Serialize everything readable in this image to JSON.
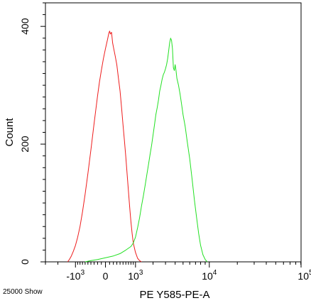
{
  "chart_data": {
    "type": "line",
    "xlabel": "PE Y585-PE-A",
    "ylabel": "Count",
    "footer_left": "25000 Show",
    "x_scale": "biexponential",
    "ylim": [
      0,
      440
    ],
    "y_ticks": [
      {
        "value": 0,
        "label": "0"
      },
      {
        "value": 200,
        "label": "200"
      },
      {
        "value": 400,
        "label": "400"
      }
    ],
    "x_ticks": [
      {
        "value": -1000,
        "base": "-10",
        "exp": "3"
      },
      {
        "value": 0,
        "base": "0",
        "exp": ""
      },
      {
        "value": 1000,
        "base": "10",
        "exp": "3"
      },
      {
        "value": 10000,
        "base": "10",
        "exp": "4"
      },
      {
        "value": 100000,
        "base": "10",
        "exp": "5"
      }
    ],
    "grid": false,
    "series": [
      {
        "color": "#ee1c1c",
        "points": [
          [
            -1400,
            0
          ],
          [
            -1300,
            4
          ],
          [
            -1200,
            10
          ],
          [
            -1100,
            18
          ],
          [
            -1000,
            28
          ],
          [
            -900,
            42
          ],
          [
            -800,
            60
          ],
          [
            -700,
            85
          ],
          [
            -600,
            115
          ],
          [
            -500,
            150
          ],
          [
            -400,
            190
          ],
          [
            -300,
            235
          ],
          [
            -250,
            258
          ],
          [
            -200,
            282
          ],
          [
            -150,
            305
          ],
          [
            -100,
            325
          ],
          [
            -50,
            345
          ],
          [
            0,
            362
          ],
          [
            50,
            378
          ],
          [
            80,
            388
          ],
          [
            100,
            392
          ],
          [
            120,
            387
          ],
          [
            150,
            390
          ],
          [
            180,
            372
          ],
          [
            200,
            365
          ],
          [
            250,
            350
          ],
          [
            300,
            335
          ],
          [
            350,
            312
          ],
          [
            400,
            290
          ],
          [
            450,
            262
          ],
          [
            500,
            232
          ],
          [
            550,
            205
          ],
          [
            600,
            178
          ],
          [
            650,
            148
          ],
          [
            700,
            120
          ],
          [
            750,
            92
          ],
          [
            800,
            68
          ],
          [
            850,
            48
          ],
          [
            900,
            32
          ],
          [
            1000,
            16
          ],
          [
            1100,
            6
          ],
          [
            1200,
            2
          ],
          [
            1300,
            0
          ]
        ]
      },
      {
        "color": "#22e022",
        "points": [
          [
            -600,
            0
          ],
          [
            -400,
            2
          ],
          [
            -200,
            4
          ],
          [
            0,
            7
          ],
          [
            200,
            10
          ],
          [
            400,
            14
          ],
          [
            600,
            20
          ],
          [
            800,
            26
          ],
          [
            900,
            32
          ],
          [
            1000,
            42
          ],
          [
            1100,
            58
          ],
          [
            1200,
            75
          ],
          [
            1300,
            95
          ],
          [
            1400,
            112
          ],
          [
            1500,
            130
          ],
          [
            1600,
            148
          ],
          [
            1700,
            165
          ],
          [
            1800,
            182
          ],
          [
            1900,
            198
          ],
          [
            2000,
            215
          ],
          [
            2100,
            232
          ],
          [
            2200,
            250
          ],
          [
            2300,
            262
          ],
          [
            2400,
            275
          ],
          [
            2500,
            290
          ],
          [
            2600,
            300
          ],
          [
            2700,
            310
          ],
          [
            2800,
            318
          ],
          [
            2900,
            322
          ],
          [
            3000,
            328
          ],
          [
            3100,
            335
          ],
          [
            3200,
            345
          ],
          [
            3300,
            358
          ],
          [
            3400,
            372
          ],
          [
            3500,
            380
          ],
          [
            3600,
            376
          ],
          [
            3700,
            362
          ],
          [
            3800,
            330
          ],
          [
            3900,
            325
          ],
          [
            4000,
            335
          ],
          [
            4100,
            325
          ],
          [
            4200,
            312
          ],
          [
            4400,
            300
          ],
          [
            4600,
            285
          ],
          [
            4800,
            268
          ],
          [
            5000,
            250
          ],
          [
            5300,
            230
          ],
          [
            5600,
            205
          ],
          [
            6000,
            175
          ],
          [
            6400,
            140
          ],
          [
            6800,
            105
          ],
          [
            7200,
            75
          ],
          [
            7600,
            48
          ],
          [
            8000,
            28
          ],
          [
            8500,
            12
          ],
          [
            9000,
            4
          ],
          [
            9500,
            0
          ]
        ]
      }
    ]
  }
}
